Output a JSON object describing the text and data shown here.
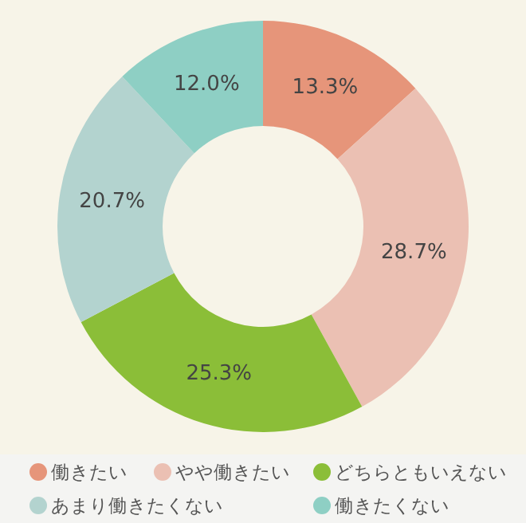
{
  "chart_data": {
    "type": "donut",
    "categories": [
      "働きたい",
      "やや働きたい",
      "どちらともいえない",
      "あまり働きたくない",
      "働きたくない"
    ],
    "values": [
      13.3,
      28.7,
      25.3,
      20.7,
      12.0
    ],
    "colors": [
      "#e6957a",
      "#ebc0b3",
      "#8bbe38",
      "#b3d3cf",
      "#8ecfc4"
    ],
    "value_labels": [
      "13.3%",
      "28.7%",
      "25.3%",
      "20.7%",
      "12.0%"
    ],
    "legend": "bottom"
  }
}
